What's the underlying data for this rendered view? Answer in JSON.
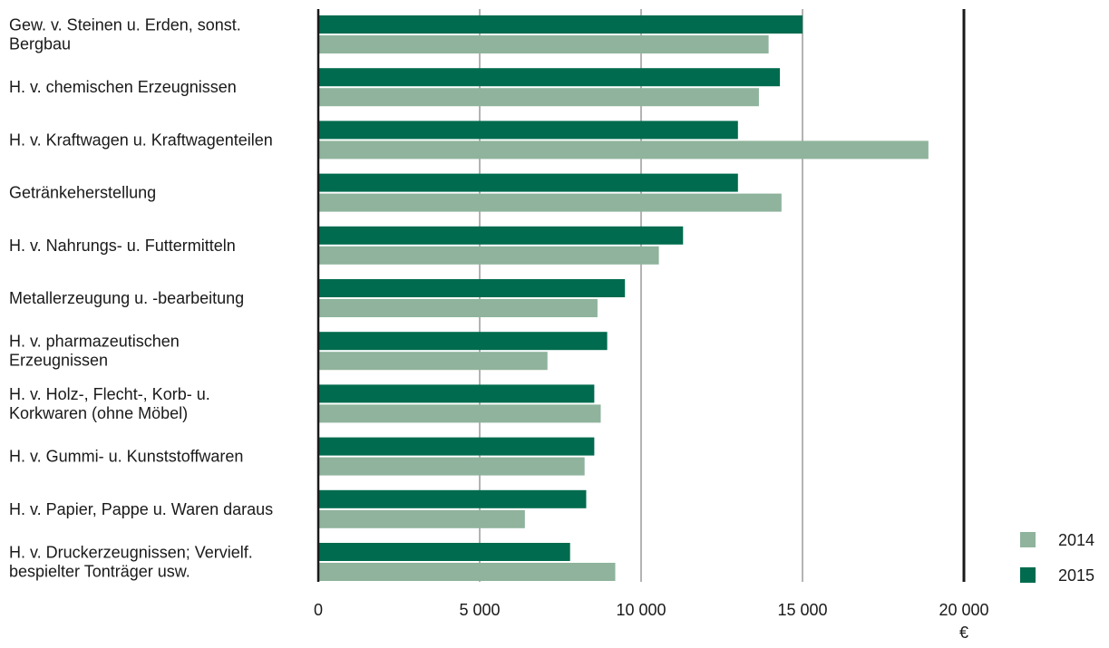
{
  "chart_data": {
    "type": "bar",
    "orientation": "horizontal",
    "categories": [
      [
        "Gew. v. Steinen u. Erden, sonst.",
        "Bergbau"
      ],
      [
        "H. v. chemischen Erzeugnissen"
      ],
      [
        "H. v. Kraftwagen u. Kraftwagenteilen"
      ],
      [
        "Getränkeherstellung"
      ],
      [
        "H. v. Nahrungs- u. Futtermitteln"
      ],
      [
        "Metallerzeugung u. -bearbeitung"
      ],
      [
        "H. v. pharmazeutischen",
        "Erzeugnissen"
      ],
      [
        "H. v. Holz-, Flecht-, Korb- u.",
        "Korkwaren (ohne Möbel)"
      ],
      [
        "H. v. Gummi- u. Kunststoffwaren"
      ],
      [
        "H. v. Papier, Pappe u. Waren daraus"
      ],
      [
        "H. v. Druckerzeugnissen; Vervielf.",
        "bespielter Tonträger usw."
      ]
    ],
    "series": [
      {
        "name": "2015",
        "color": "#006b4e",
        "values": [
          15000,
          14300,
          13000,
          13000,
          11300,
          9500,
          8950,
          8550,
          8550,
          8300,
          7800
        ]
      },
      {
        "name": "2014",
        "color": "#8fb39c",
        "values": [
          13950,
          13650,
          18900,
          14350,
          10550,
          8650,
          7100,
          8750,
          8250,
          6400,
          9200
        ]
      }
    ],
    "xlim": [
      0,
      20000
    ],
    "xticks": [
      0,
      5000,
      10000,
      15000,
      20000
    ],
    "xtick_labels": [
      "0",
      "5 000",
      "10 000",
      "15 000",
      "20 000"
    ],
    "unit": "€",
    "legend": [
      {
        "label": "2014",
        "color": "#8fb39c"
      },
      {
        "label": "2015",
        "color": "#006b4e"
      }
    ],
    "legend_position": "bottom-right",
    "grid": true
  }
}
